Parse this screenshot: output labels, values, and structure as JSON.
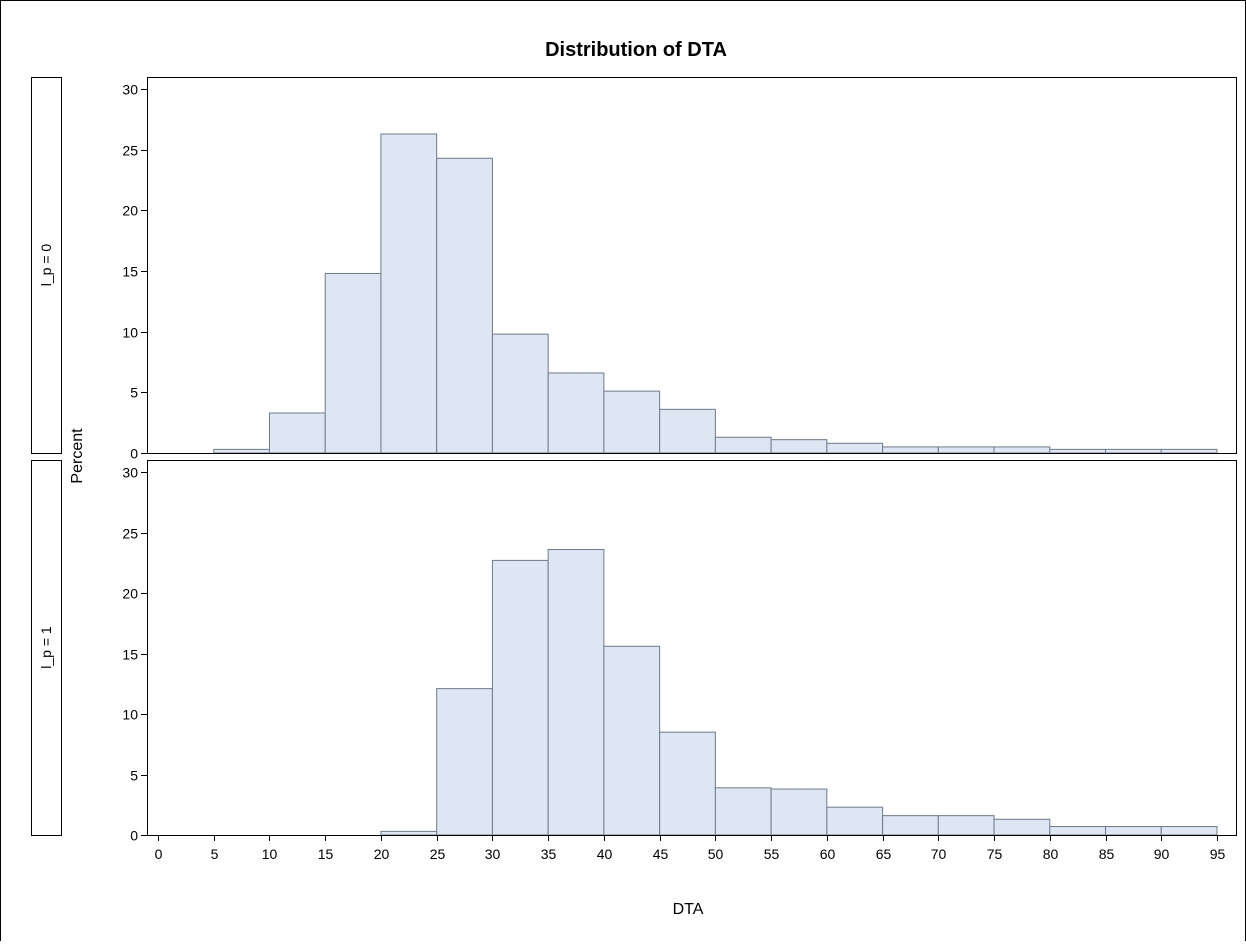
{
  "chart_data": {
    "type": "bar",
    "title": "Distribution of DTA",
    "xlabel": "DTA",
    "ylabel": "Percent",
    "bin_width": 5,
    "xlim": [
      0,
      95
    ],
    "ylim": [
      0,
      31
    ],
    "x_ticks": [
      0,
      5,
      10,
      15,
      20,
      25,
      30,
      35,
      40,
      45,
      50,
      55,
      60,
      65,
      70,
      75,
      80,
      85,
      90,
      95
    ],
    "y_ticks": [
      0,
      5,
      10,
      15,
      20,
      25,
      30
    ],
    "bar_color": "#dde6f2",
    "bar_edge_color": "#6e7b8c",
    "panels": [
      {
        "label": "l_p = 0",
        "bin_starts": [
          5,
          10,
          15,
          20,
          25,
          30,
          35,
          40,
          45,
          50,
          55,
          60,
          65,
          70,
          75,
          80,
          85,
          90
        ],
        "values": [
          0.3,
          3.3,
          14.8,
          26.3,
          24.3,
          9.8,
          6.6,
          5.1,
          3.6,
          1.3,
          1.1,
          0.8,
          0.5,
          0.5,
          0.5,
          0.3,
          0.3,
          0.3
        ]
      },
      {
        "label": "l_p = 1",
        "bin_starts": [
          20,
          25,
          30,
          35,
          40,
          45,
          50,
          55,
          60,
          65,
          70,
          75,
          80,
          85,
          90
        ],
        "values": [
          0.3,
          12.1,
          22.7,
          23.6,
          15.6,
          8.5,
          3.9,
          3.8,
          2.3,
          1.6,
          1.6,
          1.3,
          0.7,
          0.7,
          0.7
        ]
      }
    ]
  }
}
